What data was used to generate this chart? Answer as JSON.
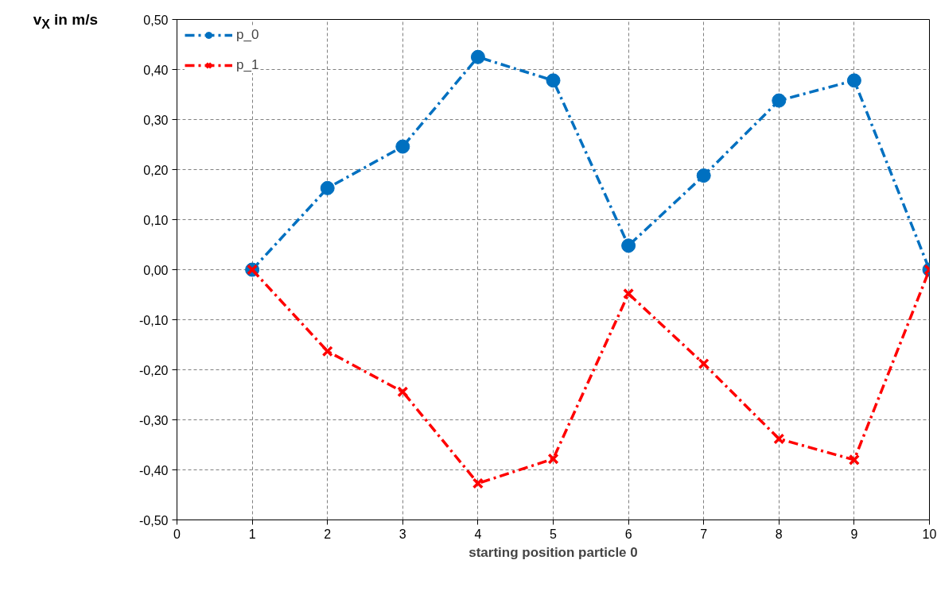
{
  "chart_data": {
    "type": "line",
    "xlabel": "starting position particle 0",
    "ylabel": "v$_{X}$ in m/s",
    "x": [
      1,
      2,
      3,
      4,
      5,
      6,
      7,
      8,
      9,
      10
    ],
    "series": [
      {
        "name": "p_0",
        "color": "#0070c0",
        "marker": "circle",
        "line_style": "dashdot",
        "values": [
          0.0,
          0.163,
          0.246,
          0.425,
          0.378,
          0.048,
          0.188,
          0.338,
          0.378,
          0.0
        ]
      },
      {
        "name": "p_1",
        "color": "#ff0000",
        "marker": "cross",
        "line_style": "dashdot",
        "values": [
          0.0,
          -0.163,
          -0.244,
          -0.427,
          -0.378,
          -0.048,
          -0.188,
          -0.338,
          -0.38,
          0.0
        ]
      }
    ],
    "xlim": [
      0,
      10
    ],
    "xticks": [
      0,
      1,
      2,
      3,
      4,
      5,
      6,
      7,
      8,
      9,
      10
    ],
    "ylim": [
      -0.5,
      0.5
    ],
    "yticks": [
      {
        "value": -0.5,
        "label": "-0,50"
      },
      {
        "value": -0.4,
        "label": "-0,40"
      },
      {
        "value": -0.3,
        "label": "-0,30"
      },
      {
        "value": -0.2,
        "label": "-0,20"
      },
      {
        "value": -0.1,
        "label": "-0,10"
      },
      {
        "value": 0.0,
        "label": "0,00"
      },
      {
        "value": 0.1,
        "label": "0,10"
      },
      {
        "value": 0.2,
        "label": "0,20"
      },
      {
        "value": 0.3,
        "label": "0,30"
      },
      {
        "value": 0.4,
        "label": "0,40"
      },
      {
        "value": 0.5,
        "label": "0,50"
      }
    ],
    "grid": true,
    "legend": "top left"
  }
}
